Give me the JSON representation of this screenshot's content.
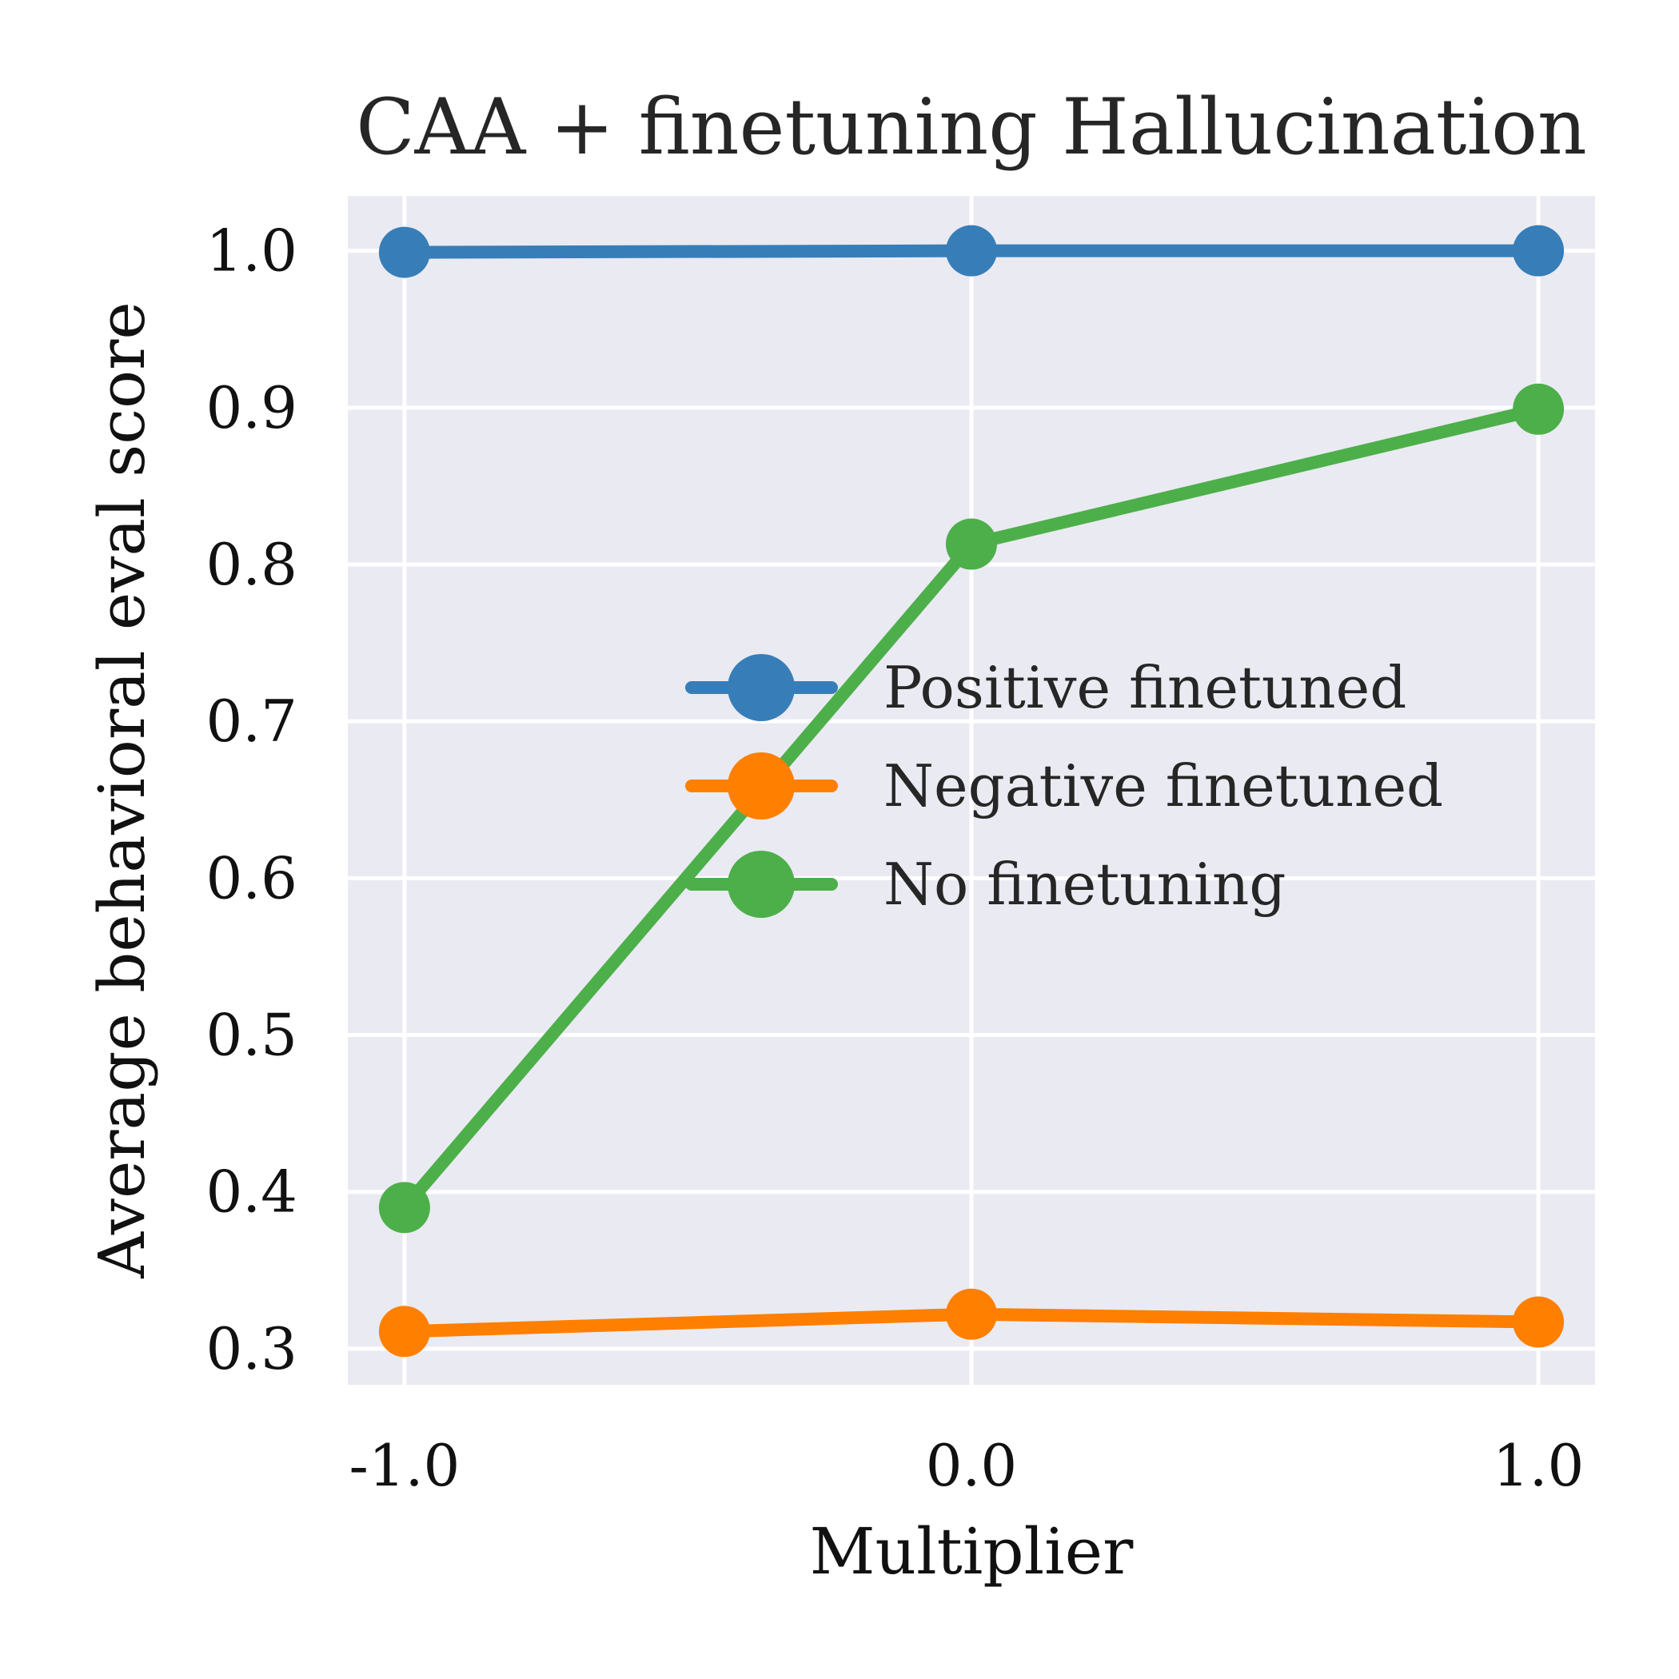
{
  "chart_data": {
    "type": "line",
    "title": "CAA + finetuning Hallucination",
    "xlabel": "Multiplier",
    "ylabel": "Average behavioral eval score",
    "x": [
      -1.0,
      0.0,
      1.0
    ],
    "x_tick_labels": [
      "-1.0",
      "0.0",
      "1.0"
    ],
    "y_ticks": [
      0.3,
      0.4,
      0.5,
      0.6,
      0.7,
      0.8,
      0.9,
      1.0
    ],
    "y_tick_labels": [
      "0.3",
      "0.4",
      "0.5",
      "0.6",
      "0.7",
      "0.8",
      "0.9",
      "1.0"
    ],
    "xlim": [
      -1.1,
      1.1
    ],
    "ylim": [
      0.277,
      1.035
    ],
    "grid": true,
    "legend_position": "center-right",
    "background_color": "#eaeaf2",
    "series": [
      {
        "name": "Positive finetuned",
        "color": "#377eb8",
        "values": [
          0.999,
          1.0,
          1.0
        ]
      },
      {
        "name": "Negative finetuned",
        "color": "#ff7f00",
        "values": [
          0.311,
          0.322,
          0.317
        ]
      },
      {
        "name": "No finetuning",
        "color": "#4daf4a",
        "values": [
          0.39,
          0.813,
          0.899
        ]
      }
    ]
  }
}
